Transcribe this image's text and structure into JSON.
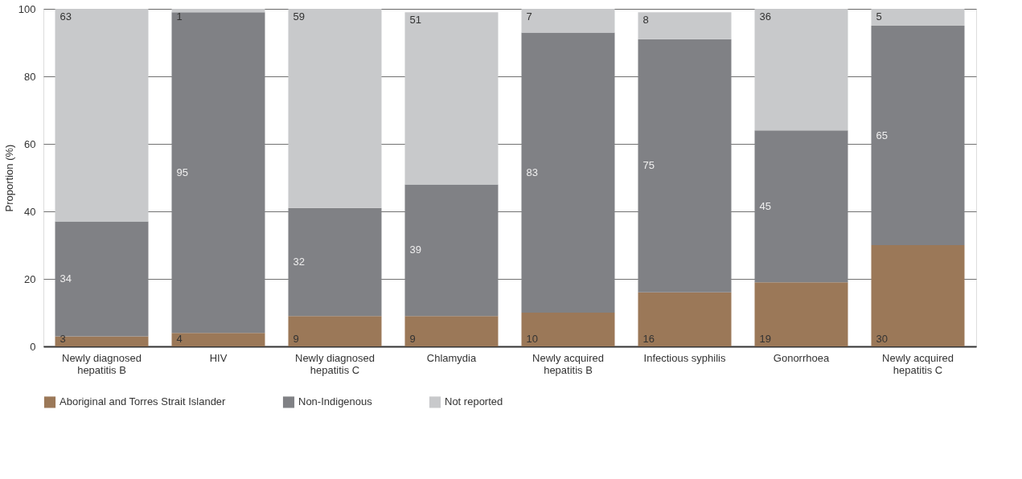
{
  "chart_data": {
    "type": "bar",
    "stacked": true,
    "ylabel": "Proportion (%)",
    "categories": [
      "Newly diagnosed hepatitis B",
      "HIV",
      "Newly diagnosed hepatitis C",
      "Chlamydia",
      "Newly acquired hepatitis B",
      "Infectious syphilis",
      "Gonorrhoea",
      "Newly acquired hepatitis C"
    ],
    "series": [
      {
        "name": "Aboriginal and Torres Strait Islander",
        "color": "#9b7858",
        "values": [
          3,
          4,
          9,
          9,
          10,
          16,
          19,
          30
        ]
      },
      {
        "name": "Non-Indigenous",
        "color": "#808185",
        "values": [
          34,
          95,
          32,
          39,
          83,
          75,
          45,
          65
        ]
      },
      {
        "name": "Not reported",
        "color": "#c8c9cb",
        "values": [
          63,
          1,
          59,
          51,
          7,
          8,
          36,
          5
        ]
      }
    ],
    "ylim": [
      0,
      100
    ],
    "yticks": [
      0,
      20,
      40,
      60,
      80,
      100
    ],
    "grid": "y",
    "legend": "bottom left",
    "data_labels": true
  }
}
